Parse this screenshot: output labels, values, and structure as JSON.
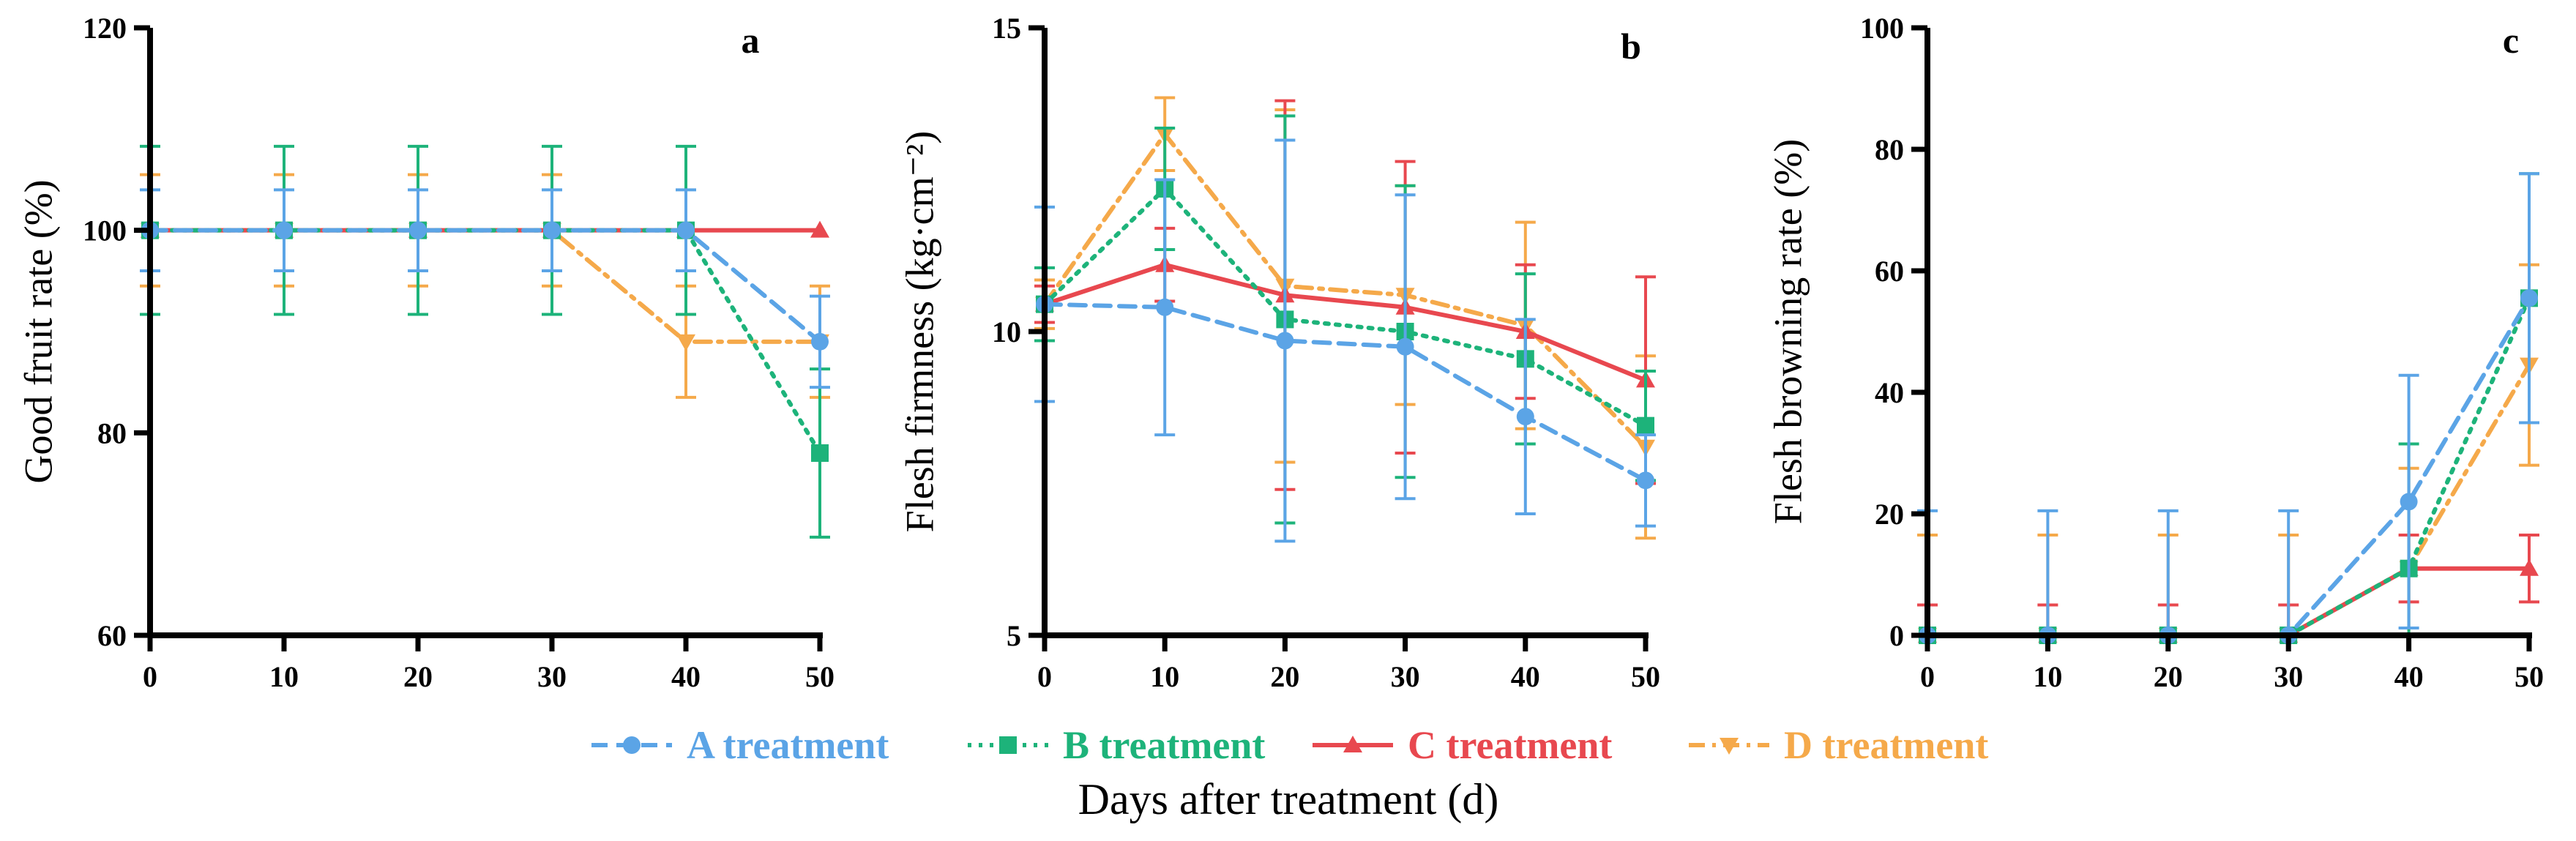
{
  "colors": {
    "A": "#5BA4E6",
    "B": "#1DB37A",
    "C": "#E8484F",
    "D": "#F5A94A",
    "axis": "#000000"
  },
  "legend": [
    {
      "key": "A",
      "label": "A treatment",
      "marker": "circle",
      "dash": "dash"
    },
    {
      "key": "B",
      "label": "B treatment",
      "marker": "square",
      "dash": "dot"
    },
    {
      "key": "C",
      "label": "C treatment",
      "marker": "triangle-up",
      "dash": "solid"
    },
    {
      "key": "D",
      "label": "D treatment",
      "marker": "triangle-down",
      "dash": "dashdot"
    }
  ],
  "xlabel": "Days after treatment (d)",
  "chart_data": [
    {
      "type": "line",
      "letter": "a",
      "ylabel": "Good fruit rate (%)",
      "x": [
        0,
        10,
        20,
        30,
        40,
        50
      ],
      "xlim": [
        0,
        50
      ],
      "xticks": [
        0,
        10,
        20,
        30,
        40,
        50
      ],
      "ylim": [
        60,
        120
      ],
      "yticks": [
        60,
        80,
        100,
        120
      ],
      "series": [
        {
          "name": "A treatment",
          "key": "A",
          "values": [
            100,
            100,
            100,
            100,
            100,
            89
          ],
          "errors": [
            4,
            4,
            4,
            4,
            4,
            4.5
          ]
        },
        {
          "name": "B treatment",
          "key": "B",
          "values": [
            100,
            100,
            100,
            100,
            100,
            78
          ],
          "errors": [
            8.3,
            8.3,
            8.3,
            8.3,
            8.3,
            8.3
          ]
        },
        {
          "name": "C treatment",
          "key": "C",
          "values": [
            100,
            100,
            100,
            100,
            100,
            100
          ],
          "errors": [
            0,
            0,
            0,
            0,
            0,
            0
          ]
        },
        {
          "name": "D treatment",
          "key": "D",
          "values": [
            100,
            100,
            100,
            100,
            89,
            89
          ],
          "errors": [
            5.5,
            5.5,
            5.5,
            5.5,
            5.5,
            5.5
          ]
        }
      ]
    },
    {
      "type": "line",
      "letter": "b",
      "ylabel": "Flesh firmness (kg·cm⁻²)",
      "x": [
        0,
        10,
        20,
        30,
        40,
        50
      ],
      "xlim": [
        0,
        50
      ],
      "xticks": [
        0,
        10,
        20,
        30,
        40,
        50
      ],
      "ylim": [
        5,
        15
      ],
      "yticks": [
        5,
        10,
        15
      ],
      "series": [
        {
          "name": "A treatment",
          "key": "A",
          "values": [
            10.45,
            10.4,
            9.85,
            9.75,
            8.6,
            7.55
          ],
          "errors": [
            1.6,
            2.1,
            3.3,
            2.5,
            1.6,
            0.75
          ]
        },
        {
          "name": "B treatment",
          "key": "B",
          "values": [
            10.45,
            12.35,
            10.2,
            10.0,
            9.55,
            8.45
          ],
          "errors": [
            0.6,
            1.0,
            3.35,
            2.4,
            1.4,
            0.9
          ]
        },
        {
          "name": "C treatment",
          "key": "C",
          "values": [
            10.45,
            11.1,
            10.6,
            10.4,
            10.0,
            9.2
          ],
          "errors": [
            0.3,
            0.6,
            3.2,
            2.4,
            1.1,
            1.7
          ]
        },
        {
          "name": "D treatment",
          "key": "D",
          "values": [
            10.45,
            13.25,
            10.75,
            10.6,
            10.1,
            8.1
          ],
          "errors": [
            0.4,
            0.6,
            2.9,
            1.8,
            1.7,
            1.5
          ]
        }
      ]
    },
    {
      "type": "line",
      "letter": "c",
      "ylabel": "Flesh browning rate (%)",
      "x": [
        0,
        10,
        20,
        30,
        40,
        50
      ],
      "xlim": [
        0,
        50
      ],
      "xticks": [
        0,
        10,
        20,
        30,
        40,
        50
      ],
      "ylim": [
        0,
        100
      ],
      "yticks": [
        0,
        20,
        40,
        60,
        80,
        100
      ],
      "series": [
        {
          "name": "A treatment",
          "key": "A",
          "values": [
            0,
            0,
            0,
            0,
            22,
            55.5
          ],
          "errors": [
            20.5,
            20.5,
            20.5,
            20.5,
            20.8,
            20.5
          ]
        },
        {
          "name": "B treatment",
          "key": "B",
          "values": [
            0,
            0,
            0,
            0,
            11,
            55.5
          ],
          "errors": [
            0,
            0,
            0,
            0,
            20.5,
            20.5
          ]
        },
        {
          "name": "C treatment",
          "key": "C",
          "values": [
            0,
            0,
            0,
            0,
            11,
            11
          ],
          "errors": [
            5,
            5,
            5,
            5,
            5.5,
            5.5
          ]
        },
        {
          "name": "D treatment",
          "key": "D",
          "values": [
            0,
            0,
            0,
            0,
            11,
            44.5
          ],
          "errors": [
            16.5,
            16.5,
            16.5,
            16.5,
            16.5,
            16.5
          ]
        }
      ]
    }
  ]
}
